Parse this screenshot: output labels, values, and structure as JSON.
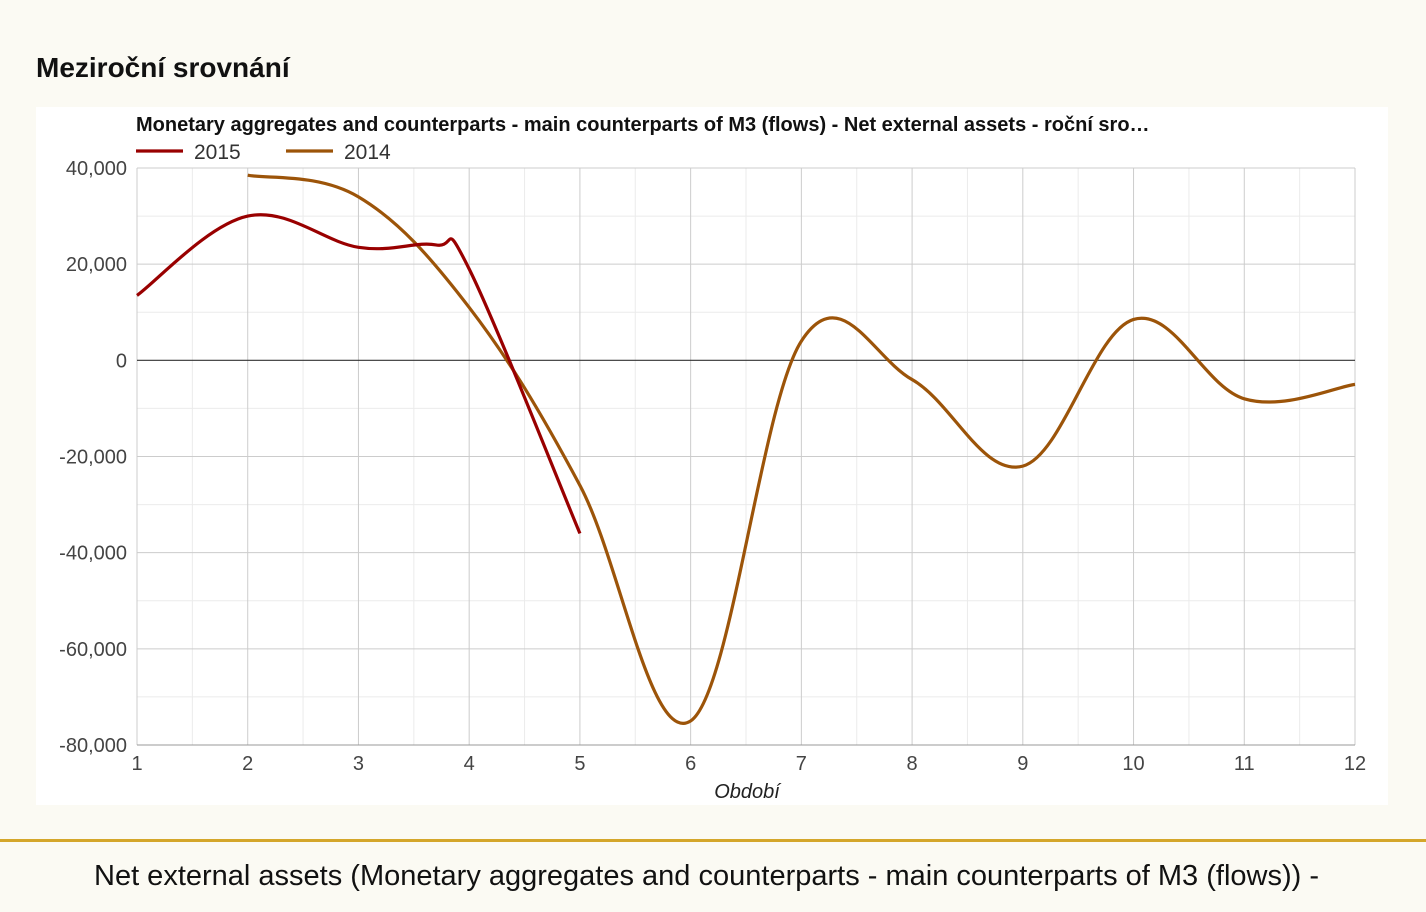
{
  "section_title": "Meziroční srovnání",
  "footer_text": "Net external assets (Monetary aggregates and counterparts - main counterparts of M3 (flows)) -",
  "colors": {
    "series_2015": "#990000",
    "series_2014": "#9c5409",
    "divider": "#d4a62a"
  },
  "chart_data": {
    "type": "line",
    "title": "Monetary aggregates and counterparts - main counterparts of M3 (flows) - Net external assets - roční sro…",
    "xlabel": "Období",
    "ylabel": "",
    "xlim": [
      1,
      12
    ],
    "ylim": [
      -80000,
      40000
    ],
    "x_ticks": [
      "1",
      "2",
      "3",
      "4",
      "5",
      "6",
      "7",
      "8",
      "9",
      "10",
      "11",
      "12"
    ],
    "y_ticks": [
      40000,
      20000,
      0,
      -20000,
      -40000,
      -60000,
      -80000
    ],
    "y_tick_labels": [
      "40,000",
      "20,000",
      "0",
      "-20,000",
      "-40,000",
      "-60,000",
      "-80,000"
    ],
    "legend_position": "top-left",
    "grid": true,
    "smooth": true,
    "series": [
      {
        "name": "2015",
        "color": "#990000",
        "x": [
          1,
          2,
          3,
          3.7,
          4,
          5
        ],
        "y": [
          13500,
          30000,
          23500,
          24000,
          19000,
          -36000
        ]
      },
      {
        "name": "2014",
        "color": "#9c5409",
        "x": [
          2,
          3,
          4,
          5,
          6,
          7,
          8,
          9,
          10,
          11,
          12
        ],
        "y": [
          38500,
          34000,
          11000,
          -26000,
          -75000,
          4000,
          -4000,
          -22000,
          8500,
          -8000,
          -5000
        ]
      }
    ]
  }
}
